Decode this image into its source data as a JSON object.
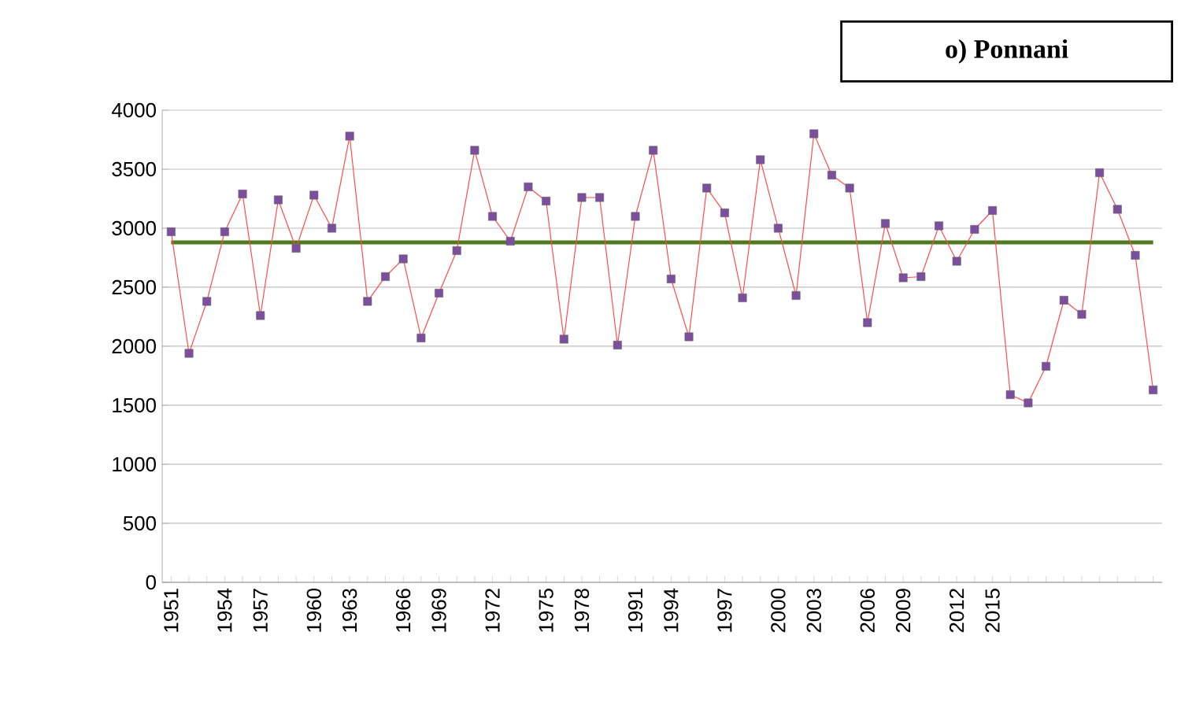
{
  "chart_data": {
    "type": "line",
    "title": "o)  Ponnani",
    "categories": [
      "1951",
      null,
      null,
      "1954",
      null,
      "1957",
      null,
      null,
      "1960",
      null,
      "1963",
      null,
      null,
      "1966",
      null,
      "1969",
      null,
      null,
      "1972",
      null,
      null,
      "1975",
      null,
      "1978",
      null,
      null,
      "1991",
      null,
      "1994",
      null,
      null,
      "1997",
      null,
      null,
      "2000",
      null,
      "2003",
      null,
      null,
      "2006",
      null,
      "2009",
      null,
      null,
      "2012",
      null,
      "2015",
      null,
      null,
      null,
      null,
      null,
      null,
      null,
      null,
      null
    ],
    "series": [
      {
        "color": "#7b4f9d",
        "values": [
          2970,
          1940,
          2380,
          2970,
          3290,
          2260,
          3240,
          2830,
          3280,
          3000,
          3780,
          2380,
          2590,
          2740,
          2070,
          2450,
          2810,
          3660,
          3100,
          2890,
          3350,
          3230,
          2060,
          3260,
          3260,
          2010,
          3100,
          3660,
          2570,
          2080,
          3340,
          3130,
          2410,
          3580,
          3000,
          2430,
          3800,
          3450,
          3340,
          2200,
          3040,
          2580,
          2590,
          3020,
          2720,
          2990,
          3150,
          1590,
          1520,
          1830,
          2390,
          2270,
          3470,
          3160,
          2770,
          1630
        ]
      }
    ],
    "ref_lines": [
      {
        "axis": "y",
        "value": 2880,
        "color": "#4f7a1e"
      }
    ],
    "marker": "square",
    "ylim": [
      0,
      4000
    ],
    "yticks": [
      0,
      500,
      1000,
      1500,
      2000,
      2500,
      3000,
      3500,
      4000
    ],
    "grid": "y"
  }
}
